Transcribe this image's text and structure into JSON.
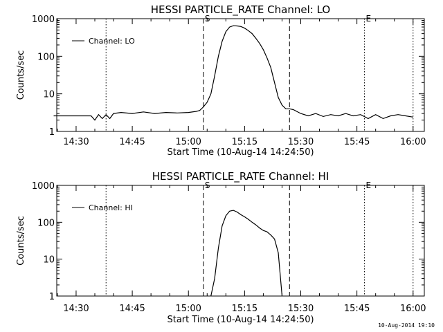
{
  "footer_stamp": "10-Aug-2014 19:10",
  "chart_data": [
    {
      "type": "line",
      "title": "HESSI PARTICLE_RATE Channel: LO",
      "xlabel": "Start Time (10-Aug-14 14:24:50)",
      "ylabel": "Counts/sec",
      "y_scale": "log",
      "ylim": [
        1,
        1000
      ],
      "y_ticks": [
        "1",
        "10",
        "100",
        "1000"
      ],
      "x_ticks": [
        "14:30",
        "14:45",
        "15:00",
        "15:15",
        "15:30",
        "15:45",
        "16:00"
      ],
      "legend": "Channel: LO",
      "legend_position": "top-left",
      "markers": [
        {
          "time": "14:38",
          "style": "dotted",
          "label": ""
        },
        {
          "time": "15:04",
          "style": "dashed",
          "label": "S"
        },
        {
          "time": "15:27",
          "style": "dashed",
          "label": ""
        },
        {
          "time": "15:47",
          "style": "dotted",
          "label": "E"
        },
        {
          "time": "16:00",
          "style": "dotted",
          "label": ""
        }
      ],
      "series": [
        {
          "name": "Channel: LO",
          "points": [
            [
              "14:24",
              2.6
            ],
            [
              "14:26",
              2.6
            ],
            [
              "14:28",
              2.6
            ],
            [
              "14:30",
              2.6
            ],
            [
              "14:32",
              2.6
            ],
            [
              "14:34",
              2.6
            ],
            [
              "14:35",
              2.0
            ],
            [
              "14:36",
              2.8
            ],
            [
              "14:37",
              2.2
            ],
            [
              "14:38",
              2.8
            ],
            [
              "14:39",
              2.2
            ],
            [
              "14:40",
              3.0
            ],
            [
              "14:42",
              3.2
            ],
            [
              "14:45",
              3.0
            ],
            [
              "14:48",
              3.3
            ],
            [
              "14:51",
              3.0
            ],
            [
              "14:54",
              3.2
            ],
            [
              "14:57",
              3.1
            ],
            [
              "15:00",
              3.2
            ],
            [
              "15:02",
              3.4
            ],
            [
              "15:03",
              3.6
            ],
            [
              "15:04",
              4.5
            ],
            [
              "15:05",
              6.0
            ],
            [
              "15:06",
              10
            ],
            [
              "15:07",
              30
            ],
            [
              "15:08",
              100
            ],
            [
              "15:09",
              250
            ],
            [
              "15:10",
              450
            ],
            [
              "15:11",
              600
            ],
            [
              "15:12",
              650
            ],
            [
              "15:13",
              640
            ],
            [
              "15:14",
              620
            ],
            [
              "15:15",
              560
            ],
            [
              "15:16",
              480
            ],
            [
              "15:17",
              400
            ],
            [
              "15:18",
              300
            ],
            [
              "15:19",
              220
            ],
            [
              "15:20",
              150
            ],
            [
              "15:21",
              90
            ],
            [
              "15:22",
              50
            ],
            [
              "15:23",
              20
            ],
            [
              "15:24",
              8
            ],
            [
              "15:25",
              5
            ],
            [
              "15:26",
              4
            ],
            [
              "15:27",
              4
            ],
            [
              "15:28",
              3.8
            ],
            [
              "15:30",
              3.0
            ],
            [
              "15:32",
              2.6
            ],
            [
              "15:34",
              3.0
            ],
            [
              "15:36",
              2.5
            ],
            [
              "15:38",
              2.8
            ],
            [
              "15:40",
              2.6
            ],
            [
              "15:42",
              3.0
            ],
            [
              "15:44",
              2.6
            ],
            [
              "15:46",
              2.8
            ],
            [
              "15:48",
              2.2
            ],
            [
              "15:50",
              2.8
            ],
            [
              "15:52",
              2.2
            ],
            [
              "15:54",
              2.6
            ],
            [
              "15:56",
              2.8
            ],
            [
              "15:58",
              2.6
            ],
            [
              "16:00",
              2.4
            ]
          ]
        }
      ]
    },
    {
      "type": "line",
      "title": "HESSI PARTICLE_RATE Channel: HI",
      "xlabel": "Start Time (10-Aug-14 14:24:50)",
      "ylabel": "Counts/sec",
      "y_scale": "log",
      "ylim": [
        1,
        1000
      ],
      "y_ticks": [
        "1",
        "10",
        "100",
        "1000"
      ],
      "x_ticks": [
        "14:30",
        "14:45",
        "15:00",
        "15:15",
        "15:30",
        "15:45",
        "16:00"
      ],
      "legend": "Channel: HI",
      "legend_position": "top-left",
      "markers": [
        {
          "time": "14:38",
          "style": "dotted",
          "label": ""
        },
        {
          "time": "15:04",
          "style": "dashed",
          "label": "S"
        },
        {
          "time": "15:27",
          "style": "dashed",
          "label": ""
        },
        {
          "time": "15:47",
          "style": "dotted",
          "label": "E"
        },
        {
          "time": "16:00",
          "style": "dotted",
          "label": ""
        }
      ],
      "series": [
        {
          "name": "Channel: HI",
          "points": [
            [
              "15:06",
              1.0
            ],
            [
              "15:07",
              3
            ],
            [
              "15:08",
              20
            ],
            [
              "15:09",
              80
            ],
            [
              "15:10",
              150
            ],
            [
              "15:11",
              200
            ],
            [
              "15:12",
              210
            ],
            [
              "15:13",
              190
            ],
            [
              "15:14",
              160
            ],
            [
              "15:15",
              140
            ],
            [
              "15:16",
              120
            ],
            [
              "15:17",
              100
            ],
            [
              "15:18",
              85
            ],
            [
              "15:19",
              70
            ],
            [
              "15:20",
              60
            ],
            [
              "15:21",
              55
            ],
            [
              "15:22",
              45
            ],
            [
              "15:23",
              35
            ],
            [
              "15:24",
              15
            ],
            [
              "15:25",
              1.0
            ]
          ]
        }
      ]
    }
  ]
}
